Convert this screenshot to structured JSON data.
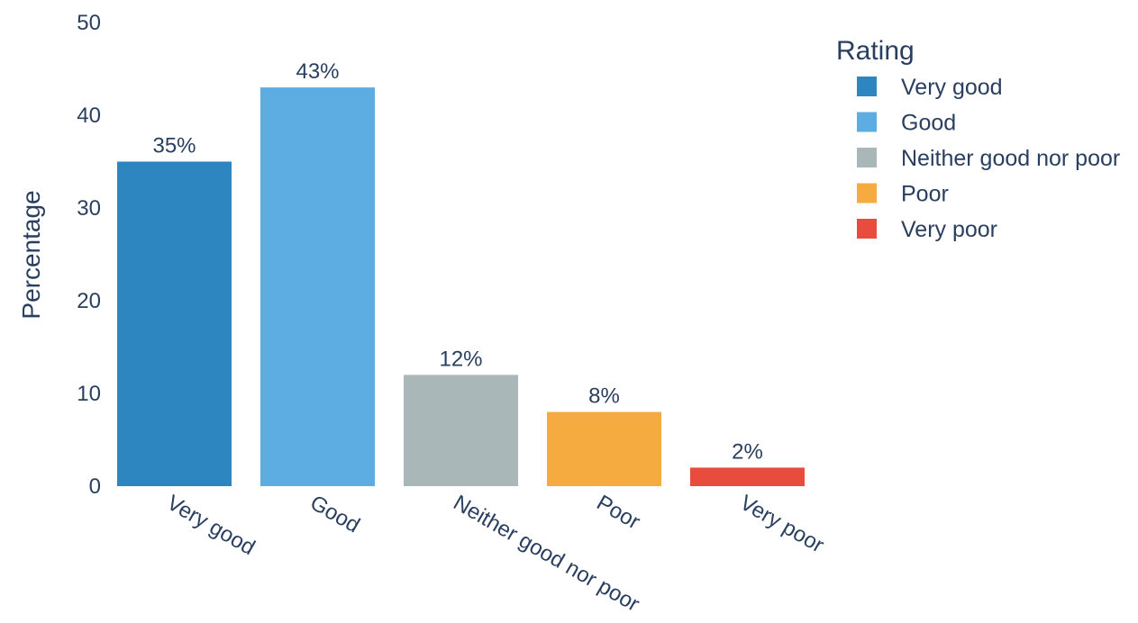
{
  "chart_data": {
    "type": "bar",
    "categories": [
      "Very good",
      "Good",
      "Neither good nor poor",
      "Poor",
      "Very poor"
    ],
    "values": [
      35,
      43,
      12,
      8,
      2
    ],
    "value_labels": [
      "35%",
      "43%",
      "12%",
      "8%",
      "2%"
    ],
    "colors": [
      "#2e86c1",
      "#5dade2",
      "#aab7b8",
      "#f5ab3f",
      "#e74c3c"
    ],
    "title": "",
    "xlabel": "",
    "ylabel": "Percentage",
    "ylim": [
      0,
      50
    ],
    "yticks": [
      0,
      10,
      20,
      30,
      40,
      50
    ],
    "grid": false,
    "legend": {
      "title": "Rating",
      "placement": "top-right",
      "entries": [
        "Very good",
        "Good",
        "Neither good nor poor",
        "Poor",
        "Very poor"
      ]
    }
  }
}
